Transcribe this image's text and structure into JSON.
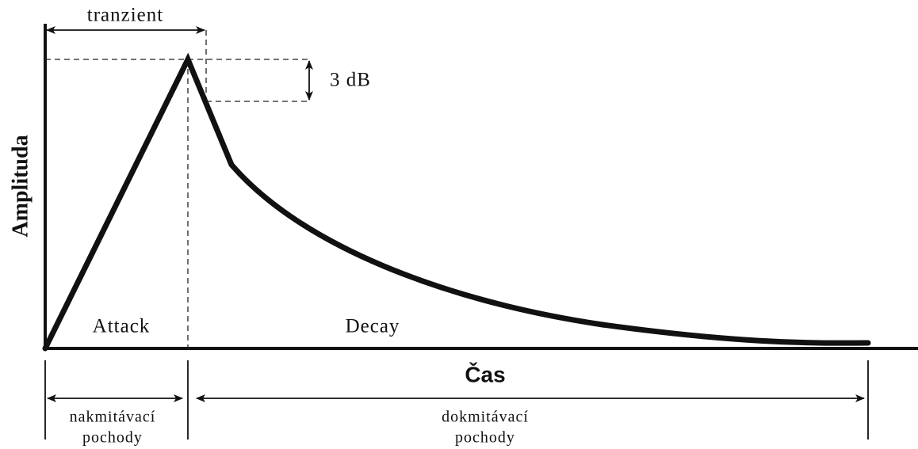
{
  "diagram": {
    "y_axis_label": "Amplituda",
    "x_axis_label": "Čas",
    "transient_label": "tranzient",
    "db_label": "3 dB",
    "phases": [
      "Attack",
      "Decay"
    ],
    "bottom_labels": [
      {
        "lines": [
          "nakmitávací",
          "pochody"
        ]
      },
      {
        "lines": [
          "dokmitávací",
          "pochody"
        ]
      }
    ]
  }
}
